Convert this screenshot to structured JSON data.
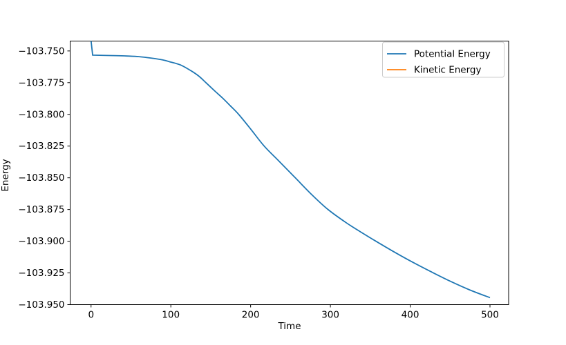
{
  "figure": {
    "background": "#ffffff",
    "xlabel": "Time",
    "ylabel": "Energy"
  },
  "legend": {
    "position": "upper right",
    "entries": [
      {
        "label": "Potential Energy",
        "color": "#1f77b4"
      },
      {
        "label": "Kinetic Energy",
        "color": "#ff7f0e"
      }
    ]
  },
  "chart_data": {
    "type": "line",
    "title": "",
    "xlabel": "Time",
    "ylabel": "Energy",
    "xlim": [
      -26.2,
      523.4
    ],
    "ylim": [
      -103.95,
      -103.7422
    ],
    "grid": false,
    "legend_position": "upper right",
    "x_ticks": {
      "values": [
        0,
        100,
        200,
        300,
        400,
        500
      ],
      "labels": [
        "0",
        "100",
        "200",
        "300",
        "400",
        "500"
      ]
    },
    "y_ticks": {
      "values": [
        -103.75,
        -103.775,
        -103.8,
        -103.825,
        -103.85,
        -103.875,
        -103.9,
        -103.925,
        -103.95
      ],
      "labels": [
        "−103.750",
        "−103.775",
        "−103.800",
        "−103.825",
        "−103.850",
        "−103.875",
        "−103.900",
        "−103.925",
        "−103.950"
      ]
    },
    "series": [
      {
        "name": "Potential Energy",
        "color": "#1f77b4",
        "visible": true,
        "points": [
          [
            0,
            -103.742
          ],
          [
            2,
            -103.7533
          ],
          [
            15,
            -103.7535
          ],
          [
            30,
            -103.7537
          ],
          [
            45,
            -103.754
          ],
          [
            60,
            -103.7545
          ],
          [
            75,
            -103.7556
          ],
          [
            90,
            -103.7571
          ],
          [
            100,
            -103.7588
          ],
          [
            112,
            -103.761
          ],
          [
            125,
            -103.7655
          ],
          [
            135,
            -103.7698
          ],
          [
            144,
            -103.775
          ],
          [
            155,
            -103.7815
          ],
          [
            165,
            -103.7872
          ],
          [
            175,
            -103.7935
          ],
          [
            185,
            -103.8
          ],
          [
            200,
            -103.8115
          ],
          [
            217,
            -103.825
          ],
          [
            235,
            -103.8365
          ],
          [
            256,
            -103.85
          ],
          [
            277,
            -103.8635
          ],
          [
            297,
            -103.875
          ],
          [
            320,
            -103.8855
          ],
          [
            340,
            -103.8935
          ],
          [
            357,
            -103.9
          ],
          [
            380,
            -103.9085
          ],
          [
            400,
            -103.9155
          ],
          [
            426,
            -103.924
          ],
          [
            450,
            -103.9315
          ],
          [
            475,
            -103.9385
          ],
          [
            500,
            -103.9445
          ]
        ]
      },
      {
        "name": "Kinetic Energy",
        "color": "#ff7f0e",
        "visible": false,
        "points": []
      }
    ]
  }
}
